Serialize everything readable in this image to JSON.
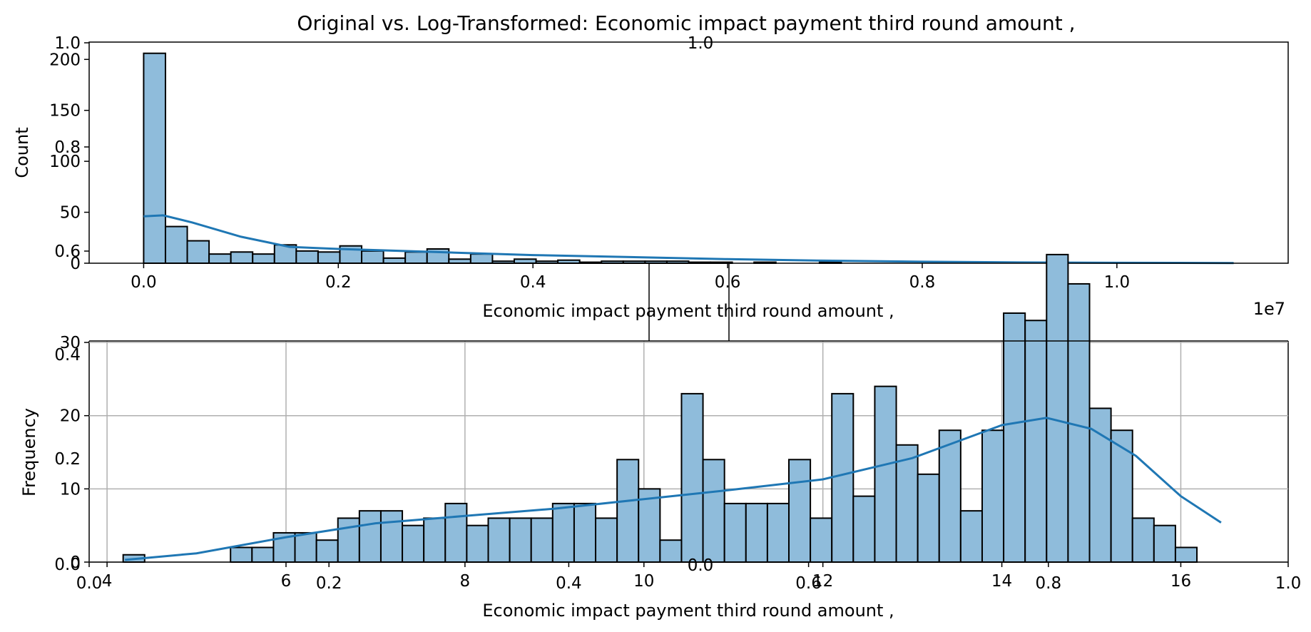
{
  "figure": {
    "title": "Original vs. Log-Transformed: Economic impact payment third round amount ,"
  },
  "chart_data": [
    {
      "type": "bar",
      "subtype": "histogram-with-kde",
      "title": "",
      "xlabel": "Economic impact payment third round amount ,",
      "ylabel": "Count",
      "x_offset_label": "1e7",
      "xlim": [
        -0.056,
        1.176
      ],
      "ylim": [
        0,
        217
      ],
      "x_ticks": [
        "0.0",
        "0.2",
        "0.4",
        "0.6",
        "0.8",
        "1.0"
      ],
      "y_ticks": [
        "0",
        "50",
        "100",
        "150",
        "200"
      ],
      "grid": false,
      "bar_color": "#8fbcdb",
      "edge_color": "#000000",
      "kde_color": "#1f77b4",
      "bin_start": 0.0,
      "bin_width": 0.0224,
      "values": [
        206,
        36,
        22,
        9,
        11,
        9,
        18,
        12,
        11,
        17,
        12,
        5,
        11,
        14,
        4,
        9,
        2,
        4,
        2,
        3,
        1,
        2,
        2,
        2,
        2,
        1,
        1,
        0,
        1,
        0,
        0,
        1,
        0,
        0,
        0,
        0,
        0,
        0,
        0,
        0,
        0,
        0,
        0,
        0,
        0,
        0,
        0,
        0,
        0,
        0
      ],
      "kde": {
        "x": [
          0.0,
          0.02,
          0.05,
          0.1,
          0.15,
          0.2,
          0.3,
          0.4,
          0.5,
          0.6,
          0.7,
          0.8,
          0.9,
          1.0,
          1.12
        ],
        "y": [
          46,
          47,
          40,
          26,
          16,
          14,
          11,
          8,
          6,
          4,
          2.5,
          1.5,
          0.8,
          0.4,
          0.2
        ]
      }
    },
    {
      "type": "bar",
      "subtype": "histogram-with-kde",
      "title": "",
      "xlabel": "Economic impact payment third round amount ,",
      "ylabel": "Frequency",
      "xlim": [
        3.8,
        17.2
      ],
      "ylim": [
        0,
        30.2
      ],
      "x_ticks": [
        "4",
        "6",
        "8",
        "10",
        "12",
        "14",
        "16"
      ],
      "y_ticks": [
        "0",
        "10",
        "20",
        "30"
      ],
      "grid": true,
      "bar_color": "#8fbcdb",
      "edge_color": "#000000",
      "kde_color": "#1f77b4",
      "bin_start": 4.18,
      "bin_width": 0.24,
      "values": [
        1,
        0,
        0,
        0,
        0,
        2,
        2,
        4,
        4,
        3,
        6,
        7,
        7,
        5,
        6,
        8,
        5,
        6,
        6,
        6,
        8,
        8,
        6,
        14,
        10,
        3,
        23,
        14,
        8,
        8,
        8,
        14,
        6,
        23,
        9,
        24,
        16,
        12,
        18,
        7,
        18,
        34,
        33,
        42,
        38,
        21,
        18,
        6,
        5,
        2
      ],
      "kde": {
        "x": [
          4.2,
          5.0,
          6.0,
          7.0,
          8.0,
          9.0,
          10.0,
          11.0,
          12.0,
          13.0,
          14.0,
          14.5,
          15.0,
          15.5,
          16.0,
          16.45
        ],
        "y": [
          0.3,
          1.2,
          3.4,
          5.3,
          6.3,
          7.3,
          8.6,
          9.9,
          11.3,
          14.2,
          18.7,
          19.7,
          18.2,
          14.5,
          9.0,
          5.4
        ]
      }
    }
  ],
  "stray_axes_ticks": {
    "top_left": [
      "1.0",
      "0.8",
      "0.6"
    ],
    "bottom_left": [
      "0.0",
      "0.2",
      "0.4"
    ],
    "bottom_axis": [
      "0.0",
      "0.2",
      "0.4",
      "0.6",
      "0.8",
      "1.0"
    ],
    "top_center": "1.0",
    "bottom_center": "0.0"
  },
  "inset_axes_ticks": {
    "left": [
      "0.0",
      "0.2",
      "0.4",
      "0.6",
      "0.8",
      "1.0"
    ],
    "bottom": [
      "0.0",
      "0.2",
      "0.4",
      "0.6",
      "0.8",
      "1.0"
    ]
  }
}
